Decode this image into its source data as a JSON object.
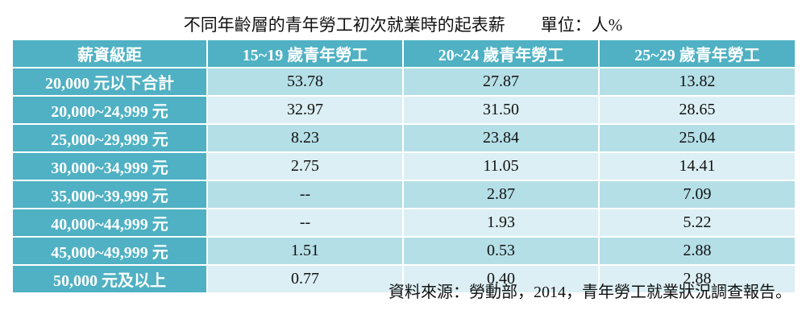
{
  "title": "不同年齡層的青年勞工初次就業時的起表薪",
  "unit": "單位：人%",
  "table": {
    "headers": [
      "薪資級距",
      "15~19 歲青年勞工",
      "20~24 歲青年勞工",
      "25~29 歲青年勞工"
    ],
    "rows": [
      {
        "label": "20,000 元以下合計",
        "values": [
          "53.78",
          "27.87",
          "13.82"
        ]
      },
      {
        "label": "20,000~24,999 元",
        "values": [
          "32.97",
          "31.50",
          "28.65"
        ]
      },
      {
        "label": "25,000~29,999 元",
        "values": [
          "8.23",
          "23.84",
          "25.04"
        ]
      },
      {
        "label": "30,000~34,999 元",
        "values": [
          "2.75",
          "11.05",
          "14.41"
        ]
      },
      {
        "label": "35,000~39,999 元",
        "values": [
          "--",
          "2.87",
          "7.09"
        ]
      },
      {
        "label": "40,000~44,999 元",
        "values": [
          "--",
          "1.93",
          "5.22"
        ]
      },
      {
        "label": "45,000~49,999 元",
        "values": [
          "1.51",
          "0.53",
          "2.88"
        ]
      },
      {
        "label": "50,000 元及以上",
        "values": [
          "0.77",
          "0.40",
          "2.88"
        ]
      }
    ]
  },
  "source": "資料來源：勞動部，2014，青年勞工就業狀況調查報告。",
  "colors": {
    "header_bg": "#4fb1c3",
    "row_odd_bg": "#b5dfe7",
    "row_even_bg": "#dceff4"
  }
}
